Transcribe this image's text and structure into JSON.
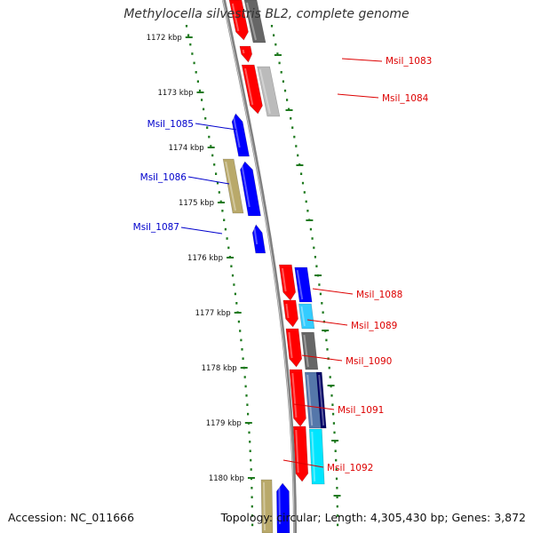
{
  "title": "Methylocella silvestris BL2, complete genome",
  "footer": {
    "accession": "Accession: NC_011666",
    "summary": "Topology: circular; Length: 4,305,430 bp; Genes: 3,872"
  },
  "colors": {
    "backbone": "#808080",
    "tick": "#1f7a1f",
    "forward_label": "#dd0000",
    "reverse_label": "#0000cc",
    "red": "#ff0000",
    "blue": "#0000ff",
    "cyan": "#00e5ff",
    "light_blue": "#33ccff",
    "gray": "#666666",
    "light_gray": "#bbbbbb",
    "khaki": "#b9a96a",
    "steel_blue": "#5577aa",
    "navy": "#000066"
  },
  "scale": {
    "unit": "kbp",
    "labels": [
      "1172 kbp",
      "1173 kbp",
      "1174 kbp",
      "1175 kbp",
      "1176 kbp",
      "1177 kbp",
      "1178 kbp",
      "1179 kbp",
      "1180 kbp"
    ]
  },
  "genes": [
    {
      "name": "Msil_1083",
      "strand": "forward"
    },
    {
      "name": "Msil_1084",
      "strand": "forward"
    },
    {
      "name": "Msil_1085",
      "strand": "reverse"
    },
    {
      "name": "Msil_1086",
      "strand": "reverse"
    },
    {
      "name": "Msil_1087",
      "strand": "reverse"
    },
    {
      "name": "Msil_1088",
      "strand": "forward"
    },
    {
      "name": "Msil_1089",
      "strand": "forward"
    },
    {
      "name": "Msil_1090",
      "strand": "forward"
    },
    {
      "name": "Msil_1091",
      "strand": "forward"
    },
    {
      "name": "Msil_1092",
      "strand": "forward"
    }
  ]
}
